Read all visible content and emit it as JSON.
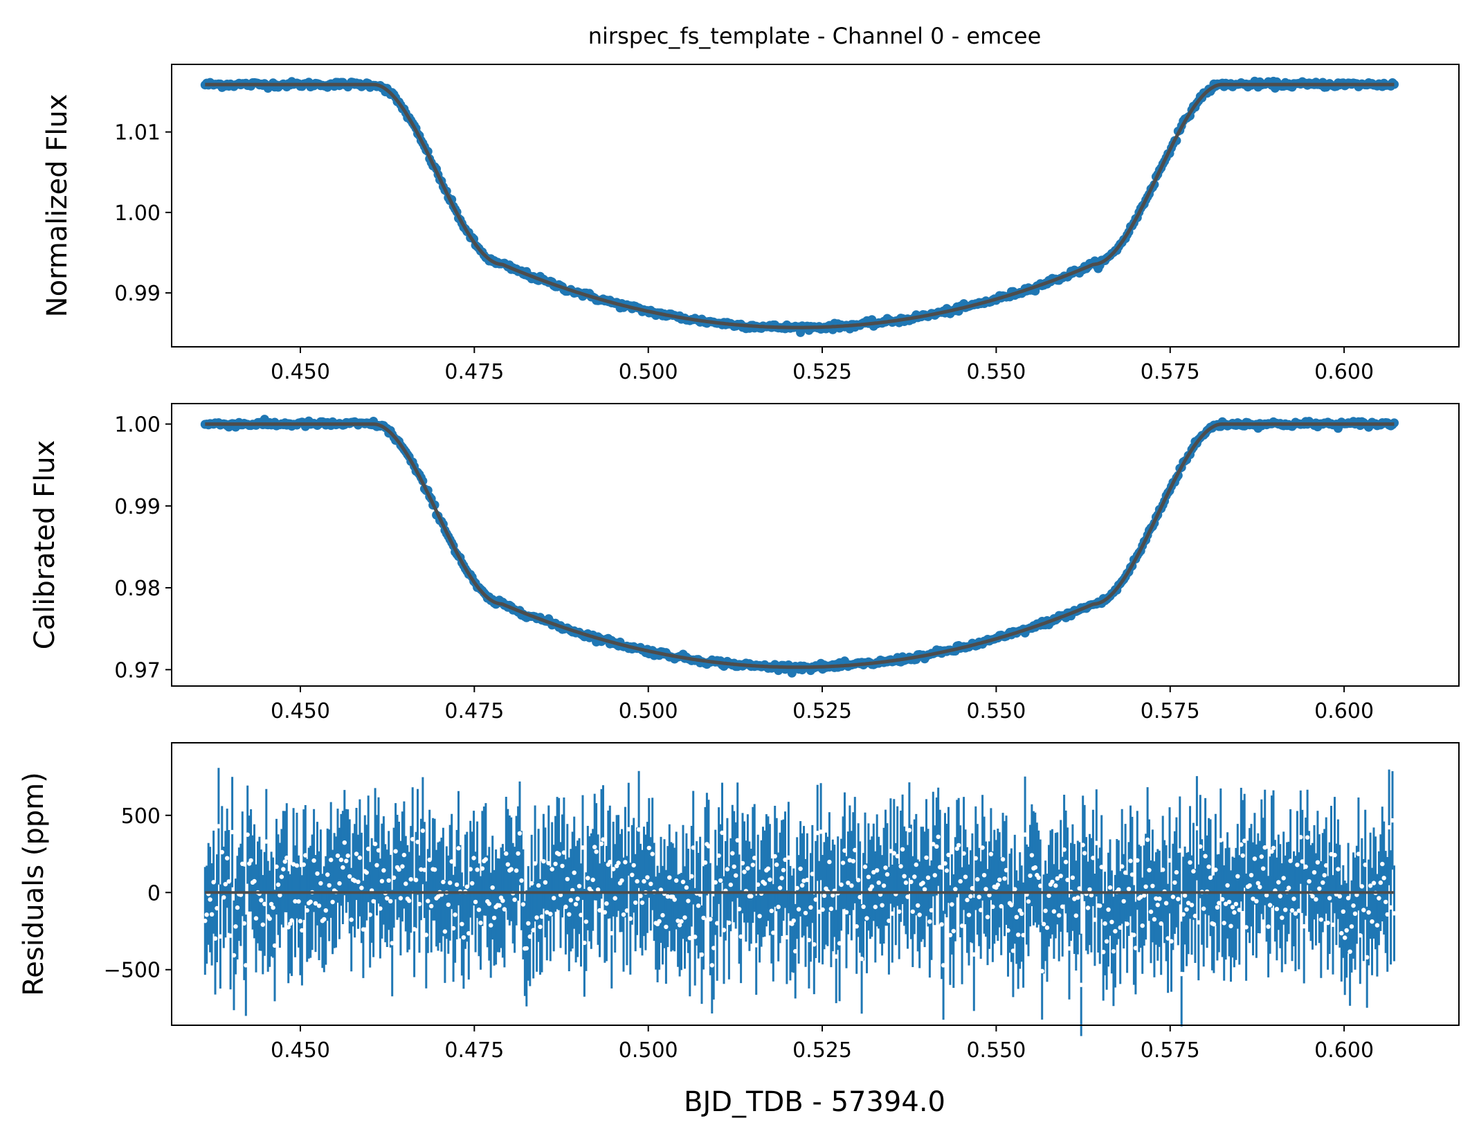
{
  "chart_data": [
    {
      "type": "scatter",
      "title": "nirspec_fs_template - Channel 0 - emcee",
      "xlabel": "",
      "ylabel": "Normalized Flux",
      "xlim": [
        0.4315,
        0.6165
      ],
      "ylim": [
        0.9833,
        1.0184
      ],
      "xticks": [
        0.45,
        0.475,
        0.5,
        0.525,
        0.55,
        0.575,
        0.6
      ],
      "xtick_labels": [
        "0.450",
        "0.475",
        "0.500",
        "0.525",
        "0.550",
        "0.575",
        "0.600"
      ],
      "yticks": [
        0.99,
        1.0,
        1.01
      ],
      "ytick_labels": [
        "0.99",
        "1.00",
        "1.01"
      ],
      "grid": false,
      "transit": {
        "t_range": [
          0.4363,
          0.6072
        ],
        "baseline": 1.0159,
        "minimum": 0.9857,
        "t1": 0.4605,
        "t2": 0.479,
        "tmid": 0.5215,
        "t3": 0.564,
        "t4": 0.5825,
        "noise": 0.00018
      },
      "series": [
        {
          "role": "data",
          "color": "#1f77b4"
        },
        {
          "role": "model",
          "color": "#4d4d4d"
        }
      ]
    },
    {
      "type": "scatter",
      "title": "",
      "xlabel": "",
      "ylabel": "Calibrated Flux",
      "xlim": [
        0.4315,
        0.6165
      ],
      "ylim": [
        0.968,
        1.0025
      ],
      "xticks": [
        0.45,
        0.475,
        0.5,
        0.525,
        0.55,
        0.575,
        0.6
      ],
      "xtick_labels": [
        "0.450",
        "0.475",
        "0.500",
        "0.525",
        "0.550",
        "0.575",
        "0.600"
      ],
      "yticks": [
        0.97,
        0.98,
        0.99,
        1.0
      ],
      "ytick_labels": [
        "0.97",
        "0.98",
        "0.99",
        "1.00"
      ],
      "grid": false,
      "transit": {
        "t_range": [
          0.4363,
          0.6072
        ],
        "baseline": 1.0,
        "minimum": 0.9703,
        "t1": 0.4605,
        "t2": 0.479,
        "tmid": 0.5215,
        "t3": 0.564,
        "t4": 0.5825,
        "noise": 0.00018
      },
      "series": [
        {
          "role": "data",
          "color": "#1f77b4"
        },
        {
          "role": "model",
          "color": "#4d4d4d"
        }
      ]
    },
    {
      "type": "scatter",
      "title": "",
      "xlabel": "BJD_TDB - 57394.0",
      "ylabel": "Residuals (ppm)",
      "xlim": [
        0.4315,
        0.6165
      ],
      "ylim": [
        -860,
        970
      ],
      "xticks": [
        0.45,
        0.475,
        0.5,
        0.525,
        0.55,
        0.575,
        0.6
      ],
      "xtick_labels": [
        "0.450",
        "0.475",
        "0.500",
        "0.525",
        "0.550",
        "0.575",
        "0.600"
      ],
      "yticks": [
        -500,
        0,
        500
      ],
      "ytick_labels": [
        "−500",
        "0",
        "500"
      ],
      "grid": false,
      "residuals": {
        "t_range": [
          0.4363,
          0.6072
        ],
        "scatter_ppm": 180,
        "errorbar_ppm": 330,
        "zero_line": 0
      },
      "series": [
        {
          "role": "errorbars",
          "color": "#1f77b4"
        },
        {
          "role": "points",
          "color": "#ffffff"
        },
        {
          "role": "zero-line",
          "color": "#4d4d4d"
        }
      ]
    }
  ]
}
